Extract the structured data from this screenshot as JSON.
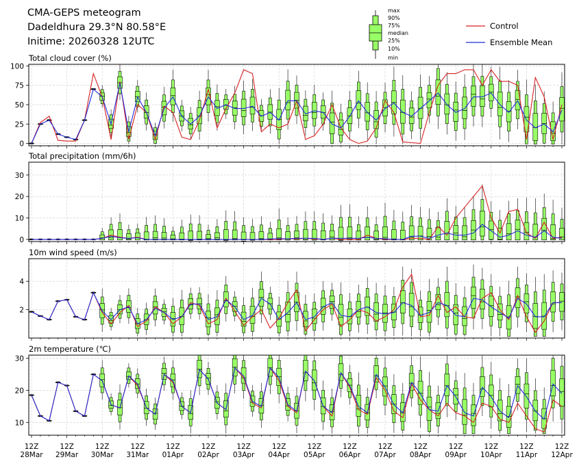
{
  "header": {
    "title": "CMA-GEPS meteogram",
    "location": "Dadeldhura 29.3°N 80.58°E",
    "initime": "Initime: 20260328 12UTC"
  },
  "legend": {
    "box_labels": [
      "max",
      "90%",
      "75%",
      "median",
      "25%",
      "10%",
      "min"
    ],
    "control_label": "Control",
    "mean_label": "Ensemble Mean"
  },
  "colors": {
    "box_fill": "#99ff66",
    "control": "#d62020",
    "mean": "#1f2bd6",
    "grid": "#cccccc"
  },
  "x_axis": {
    "hour_label": "12Z",
    "date_labels": [
      "28Mar",
      "29Mar",
      "30Mar",
      "31Mar",
      "01Apr",
      "02Apr",
      "03Apr",
      "04Apr",
      "05Apr",
      "06Apr",
      "07Apr",
      "08Apr",
      "09Apr",
      "10Apr",
      "11Apr",
      "12Apr"
    ]
  },
  "chart_data": [
    {
      "type": "box",
      "title": "Total cloud cover (%)",
      "ylim": [
        -3,
        102
      ],
      "yticks": [
        0,
        25,
        50,
        75,
        100
      ],
      "n_steps": 61,
      "step_hours": 6,
      "control": [
        0,
        27,
        35,
        4,
        3,
        3,
        30,
        90,
        60,
        5,
        80,
        5,
        50,
        40,
        5,
        48,
        40,
        8,
        5,
        30,
        70,
        20,
        45,
        65,
        95,
        90,
        15,
        25,
        20,
        25,
        55,
        5,
        10,
        25,
        50,
        20,
        5,
        0,
        3,
        20,
        55,
        40,
        2,
        1,
        0,
        40,
        75,
        90,
        90,
        95,
        95,
        75,
        95,
        80,
        80,
        75,
        5,
        85,
        60,
        5,
        50
      ],
      "mean": [
        0,
        25,
        30,
        12,
        8,
        5,
        30,
        70,
        60,
        25,
        78,
        15,
        60,
        40,
        10,
        45,
        60,
        35,
        25,
        35,
        60,
        45,
        50,
        45,
        45,
        48,
        35,
        40,
        30,
        55,
        55,
        38,
        42,
        40,
        25,
        20,
        35,
        55,
        40,
        30,
        45,
        52,
        40,
        35,
        45,
        55,
        65,
        50,
        40,
        45,
        60,
        60,
        65,
        50,
        40,
        55,
        30,
        20,
        25,
        15,
        43
      ]
    },
    {
      "type": "box",
      "title": "Total precipitation (mm/6h)",
      "ylim": [
        -1,
        36
      ],
      "yticks": [
        0,
        10,
        20,
        30
      ],
      "n_steps": 61,
      "step_hours": 6,
      "control": [
        0,
        0,
        0,
        0,
        0,
        0,
        0,
        0,
        0.5,
        2,
        1,
        0.5,
        1,
        0,
        0,
        0,
        0,
        0,
        0,
        0,
        0,
        0,
        0,
        0,
        0,
        0,
        0,
        0,
        0,
        0.3,
        0.2,
        0.5,
        0.2,
        0,
        0.5,
        0,
        0,
        0,
        2,
        0.5,
        0,
        0,
        0,
        0.5,
        0.5,
        0,
        6,
        2,
        10,
        15,
        20,
        25,
        10,
        3,
        13,
        14,
        3,
        0.5,
        8,
        0.5,
        1
      ],
      "mean": [
        0,
        0,
        0,
        0,
        0,
        0,
        0,
        0,
        0.5,
        1.5,
        0.8,
        0.5,
        0.8,
        0,
        0,
        0,
        0,
        0,
        0,
        0,
        0,
        0,
        0,
        0,
        0,
        0,
        0,
        0.2,
        0.3,
        0.3,
        0.5,
        0.5,
        0.5,
        0,
        0.5,
        0.5,
        0.5,
        0.5,
        1,
        0.5,
        0.3,
        0,
        0,
        1.5,
        1.5,
        0.5,
        2,
        3,
        2,
        2,
        3,
        7,
        4,
        1,
        2,
        4,
        2,
        1,
        4,
        1,
        0.5
      ]
    },
    {
      "type": "box",
      "title": "10m wind speed (m/s)",
      "ylim": [
        0,
        5.6
      ],
      "yticks": [
        2,
        4
      ],
      "n_steps": 61,
      "step_hours": 6,
      "control": [
        1.85,
        1.55,
        1.3,
        2.6,
        2.7,
        1.5,
        1.3,
        3.2,
        1.8,
        1.0,
        1.8,
        2.3,
        0.8,
        1.2,
        2.2,
        1.8,
        1.0,
        1.5,
        2.5,
        2.3,
        1.0,
        1.3,
        2.8,
        1.9,
        0.9,
        1.5,
        2.0,
        0.7,
        1.4,
        2.5,
        3.4,
        0.5,
        1.3,
        2.0,
        2.4,
        0.8,
        1.3,
        2.0,
        1.8,
        1.2,
        1.5,
        2.0,
        3.6,
        4.5,
        1.5,
        1.6,
        3.0,
        1.8,
        2.2,
        1.5,
        1.4,
        2.8,
        3.2,
        2.0,
        1.3,
        3.0,
        1.5,
        0.4,
        1.2,
        2.5,
        2.5
      ],
      "mean": [
        1.85,
        1.55,
        1.3,
        2.6,
        2.7,
        1.5,
        1.3,
        3.2,
        1.9,
        1.3,
        2.0,
        2.2,
        1.0,
        1.3,
        2.1,
        1.8,
        1.3,
        1.5,
        2.4,
        2.4,
        1.3,
        1.5,
        2.7,
        2.2,
        1.3,
        1.6,
        2.8,
        2.4,
        1.3,
        1.8,
        2.5,
        1.3,
        1.5,
        2.2,
        2.5,
        1.6,
        1.5,
        2.0,
        2.2,
        1.8,
        1.7,
        1.8,
        2.5,
        2.3,
        1.6,
        1.8,
        2.5,
        2.3,
        1.6,
        1.5,
        2.8,
        2.7,
        2.2,
        1.8,
        1.4,
        2.8,
        2.4,
        1.5,
        1.5,
        2.5,
        2.5
      ]
    },
    {
      "type": "box",
      "title": "2m temperature (℃)",
      "ylim": [
        6,
        31
      ],
      "yticks": [
        10,
        20,
        30
      ],
      "n_steps": 61,
      "step_hours": 6,
      "control": [
        18.5,
        12,
        10.5,
        22.5,
        21.5,
        13.5,
        12,
        25,
        23,
        15.5,
        14.5,
        24.5,
        21.5,
        14.5,
        12.5,
        25,
        22.5,
        15,
        13,
        26.5,
        23.5,
        16,
        14,
        27,
        24,
        16,
        14.5,
        27,
        23,
        15,
        13,
        26,
        23,
        15,
        12,
        25.5,
        21,
        14,
        12.5,
        24,
        20,
        13.5,
        11.5,
        22,
        17,
        14,
        12,
        16,
        13,
        12,
        10,
        16,
        15,
        11,
        10,
        16,
        12,
        8,
        7,
        17,
        15
      ],
      "mean": [
        18.5,
        12,
        10.5,
        22.5,
        21.5,
        13.5,
        12,
        25,
        23,
        15.5,
        14.5,
        24.5,
        22,
        14.5,
        12.5,
        25,
        23,
        15,
        13,
        26.5,
        23.5,
        16,
        14,
        27,
        24.5,
        16.5,
        15,
        27,
        24,
        15.5,
        13.5,
        26,
        23,
        15,
        13,
        25.5,
        21.5,
        15,
        13,
        25,
        21,
        15.5,
        13,
        22.5,
        19,
        14,
        13.5,
        21.5,
        18,
        13,
        12,
        21,
        18,
        13.5,
        11.5,
        21.5,
        18,
        13.5,
        11,
        22,
        19
      ]
    }
  ]
}
